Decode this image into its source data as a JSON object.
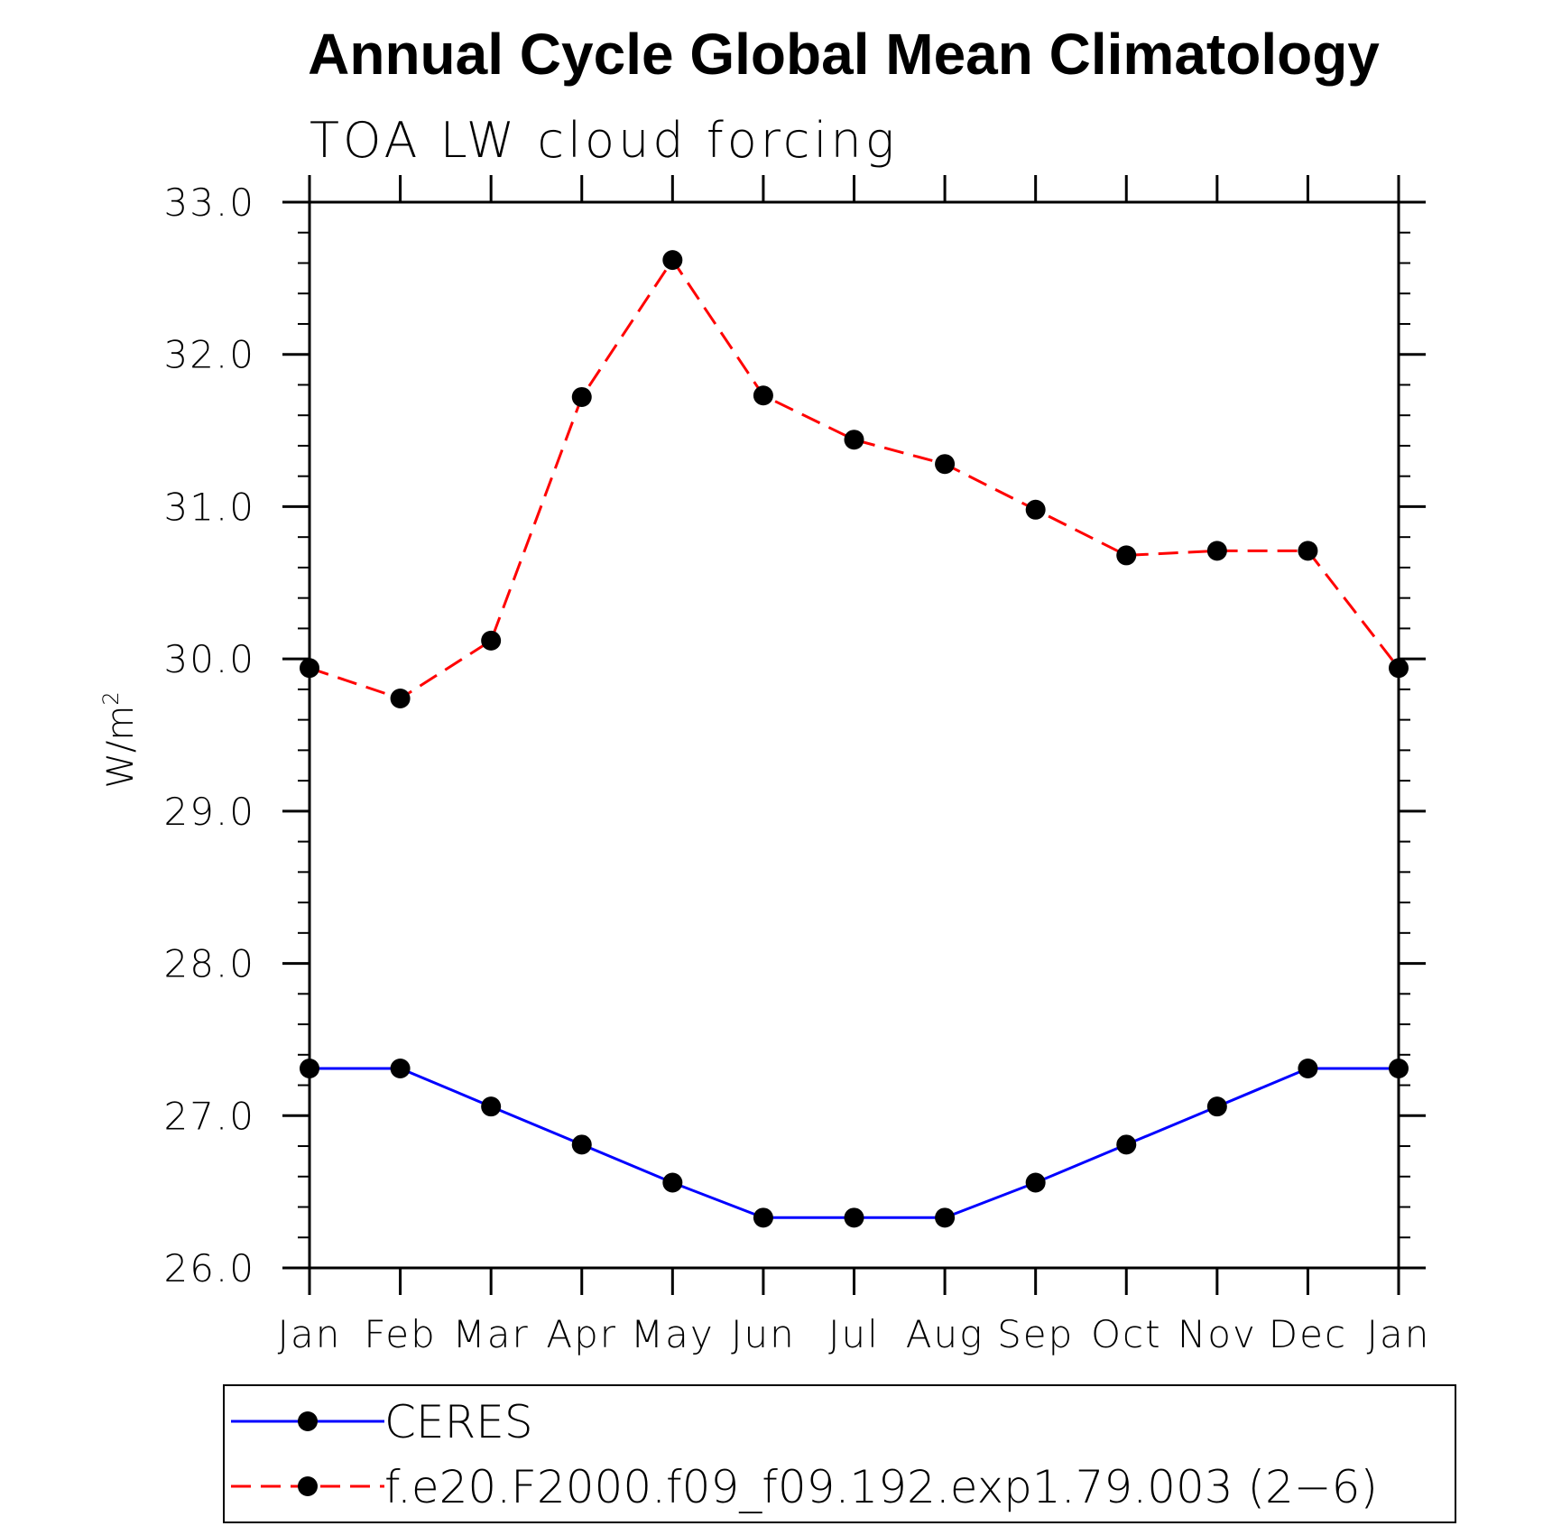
{
  "chart_data": {
    "type": "line",
    "title": "Annual Cycle Global Mean Climatology",
    "subtitle": "TOA LW cloud forcing",
    "xlabel": "",
    "ylabel": "W/m",
    "ylabel_superscript": "2",
    "categories": [
      "Jan",
      "Feb",
      "Mar",
      "Apr",
      "May",
      "Jun",
      "Jul",
      "Aug",
      "Sep",
      "Oct",
      "Nov",
      "Dec",
      "Jan"
    ],
    "ylim": [
      26.0,
      33.0
    ],
    "ytick_values": [
      26.0,
      27.0,
      28.0,
      29.0,
      30.0,
      31.0,
      32.0,
      33.0
    ],
    "ytick_labels": [
      "26.0",
      "27.0",
      "28.0",
      "29.0",
      "30.0",
      "31.0",
      "32.0",
      "33.0"
    ],
    "grid": false,
    "legend_position": "bottom",
    "series": [
      {
        "name": "CERES",
        "color": "#0000ff",
        "line_style": "solid",
        "marker": "filled-circle",
        "values": [
          27.31,
          27.31,
          27.06,
          26.81,
          26.56,
          26.33,
          26.33,
          26.33,
          26.56,
          26.81,
          27.06,
          27.31,
          27.31
        ]
      },
      {
        "name": "f.e20.F2000.f09_f09.192.exp1.79.003 (2−6)",
        "color": "#ff0000",
        "line_style": "dashed",
        "marker": "filled-circle",
        "values": [
          29.94,
          29.74,
          30.12,
          31.72,
          32.62,
          31.73,
          31.44,
          31.28,
          30.98,
          30.68,
          30.71,
          30.71,
          29.94
        ]
      }
    ]
  }
}
